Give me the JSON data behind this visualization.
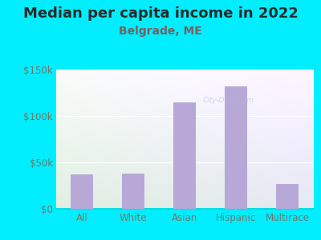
{
  "title": "Median per capita income in 2022",
  "subtitle": "Belgrade, ME",
  "categories": [
    "All",
    "White",
    "Asian",
    "Hispanic",
    "Multirace"
  ],
  "values": [
    37000,
    38000,
    115000,
    132000,
    27000
  ],
  "bar_color": "#b8a8d8",
  "bg_outer": "#00eeff",
  "title_color": "#2a2a2a",
  "subtitle_color": "#7a6060",
  "tick_label_color": "#6a7a6a",
  "ylim": [
    0,
    150000
  ],
  "yticks": [
    0,
    50000,
    100000,
    150000
  ],
  "ytick_labels": [
    "$0",
    "$50k",
    "$100k",
    "$150k"
  ],
  "watermark": "City-Data.com",
  "title_fontsize": 13,
  "subtitle_fontsize": 10,
  "tick_fontsize": 8.5
}
